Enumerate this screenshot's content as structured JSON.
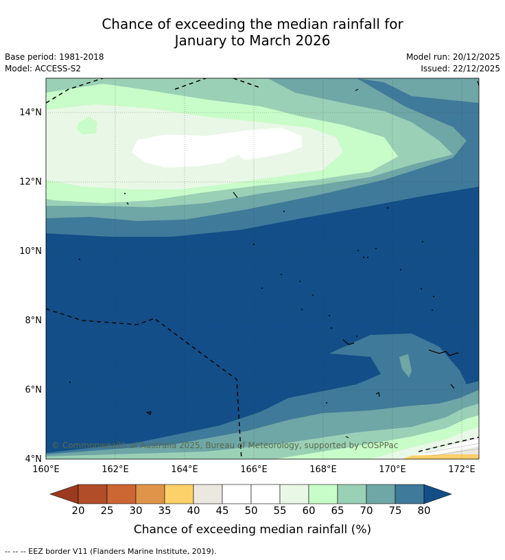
{
  "title_line1": "Chance of exceeding the median rainfall for",
  "title_line2": "January to March 2026",
  "base_period": "Base period: 1981-2018",
  "model": "Model: ACCESS-S2",
  "model_run": "Model run: 20/12/2025",
  "issued": "Issued: 22/12/2025",
  "copyright": "© Commonwealth of Australia 2025, Bureau of Meteorology, supported by COSPPac",
  "lat_labels": [
    "14°N",
    "12°N",
    "10°N",
    "8°N",
    "6°N",
    "4°N"
  ],
  "lon_labels": [
    "160°E",
    "162°E",
    "164°E",
    "166°E",
    "168°E",
    "170°E",
    "172°E"
  ],
  "colorbar": {
    "ticks": [
      "20",
      "25",
      "30",
      "35",
      "40",
      "45",
      "50",
      "55",
      "60",
      "65",
      "70",
      "75",
      "80"
    ],
    "colors": [
      "#9b3a1f",
      "#b14d28",
      "#cc6633",
      "#e0944a",
      "#fdd169",
      "#ebe8e2",
      "#ffffff",
      "#ffffff",
      "#e9f7e7",
      "#c8fcc8",
      "#9ad0b6",
      "#6fa6a6",
      "#407a9a",
      "#134e88"
    ],
    "label": "Chance of exceeding median rainfall (%)"
  },
  "footnote": "--  --  -- EEZ border V11 (Flanders Marine Institute, 2019)."
}
